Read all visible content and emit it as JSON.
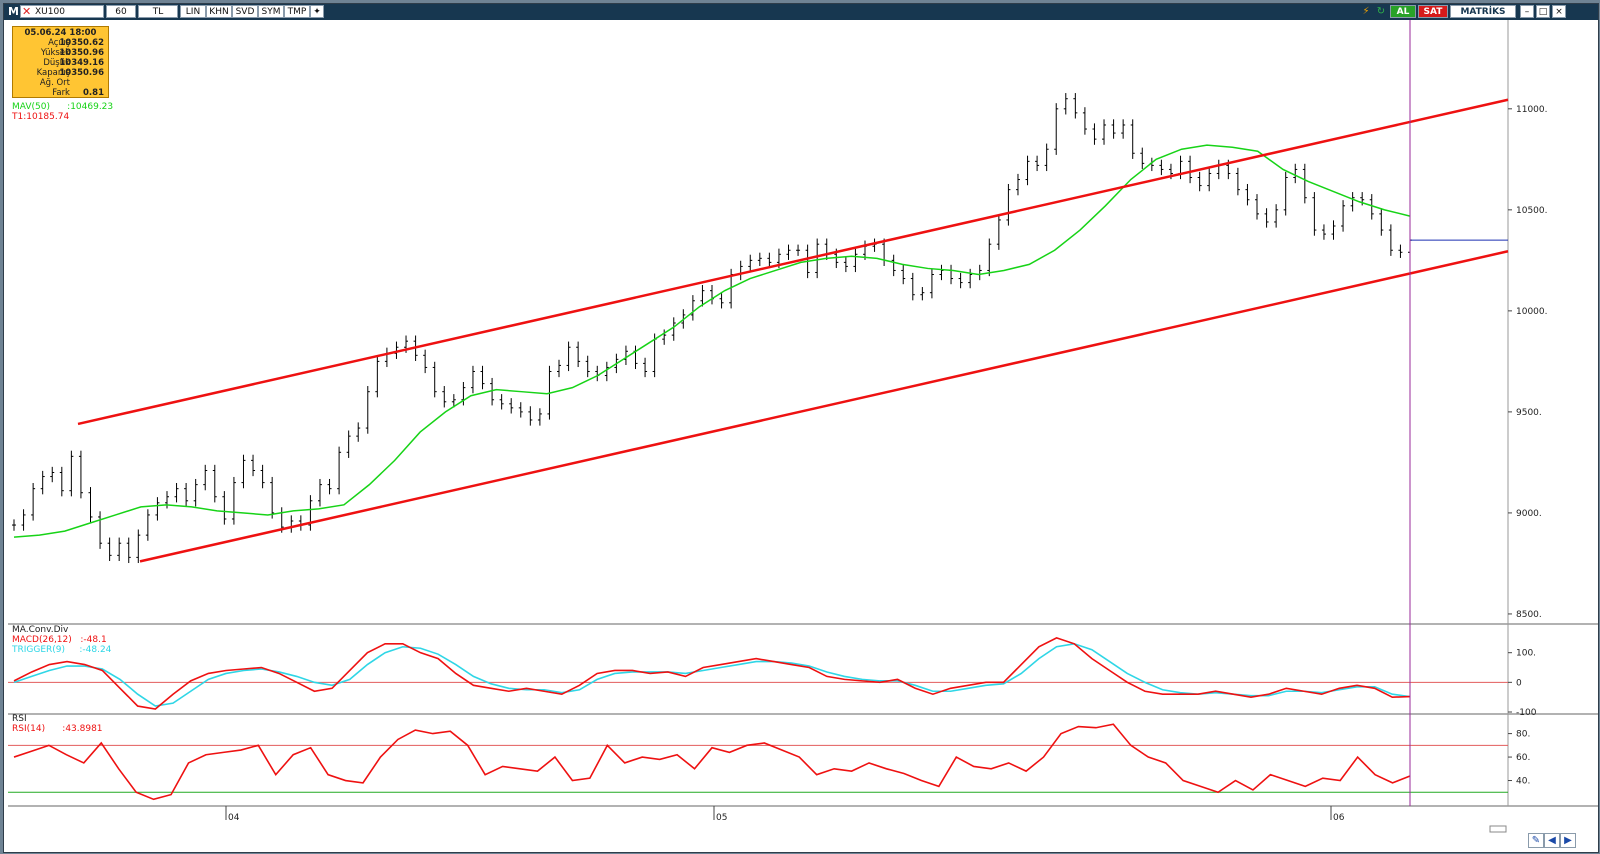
{
  "toolbar": {
    "menu_letter": "M",
    "symbol": "XU100",
    "period": "60",
    "currency": "TL",
    "buttons": [
      "LIN",
      "KHN",
      "SVD",
      "SYM",
      "TMP"
    ],
    "buy_label": "AL",
    "sell_label": "SAT",
    "brand": "MATRİKS"
  },
  "infobox": {
    "date": "05.06.24 18:00",
    "rows": [
      {
        "label": "Açılış",
        "value": "10350.62"
      },
      {
        "label": "Yüksek",
        "value": "10350.96"
      },
      {
        "label": "Düşük",
        "value": "10349.16"
      },
      {
        "label": "Kapanış",
        "value": "10350.96"
      },
      {
        "label": "Ağ. Ort",
        "value": ""
      },
      {
        "label": "Fark",
        "value": "0.81"
      }
    ]
  },
  "legends": {
    "mav": "MAV(50)",
    "mav_value": ":10469.23",
    "trend": "T1:10185.74",
    "macd_title": "MA.Conv.Div",
    "macd": "MACD(26,12)",
    "macd_value": ":-48.1",
    "trigger": "TRIGGER(9)",
    "trigger_value": ":-48.24",
    "rsi_title": "RSI",
    "rsi": "RSI(14)",
    "rsi_value": ":43.8981"
  },
  "colors": {
    "price": "#000000",
    "mav": "#17d317",
    "channel": "#ee1111",
    "macd": "#ee1111",
    "trigger": "#2fd6e6",
    "rsi": "#ee1111",
    "cursor": "#9a2a9a",
    "last_price_line": "#1a2fb0",
    "rsi_oversold": "#22aa22"
  },
  "chart_data": [
    {
      "type": "line",
      "panel": "price",
      "symbol": "XU100",
      "x_tick_labels": [
        "04",
        "05",
        "06"
      ],
      "y_ticks": [
        "8500.",
        "9000.",
        "9500.",
        "10000.",
        "10500.",
        "11000."
      ],
      "ylim": [
        8470,
        11400
      ],
      "series": [
        {
          "name": "XU100",
          "values": [
            8940,
            8990,
            9120,
            9180,
            9200,
            9110,
            9280,
            9100,
            8980,
            8850,
            8790,
            8850,
            8780,
            8890,
            8990,
            9050,
            9080,
            9120,
            9060,
            9140,
            9210,
            9080,
            8970,
            9150,
            9260,
            9210,
            9150,
            9000,
            8930,
            8960,
            8940,
            9060,
            9140,
            9120,
            9300,
            9380,
            9420,
            9600,
            9750,
            9790,
            9820,
            9850,
            9780,
            9720,
            9600,
            9550,
            9560,
            9620,
            9700,
            9640,
            9560,
            9540,
            9520,
            9500,
            9460,
            9490,
            9700,
            9730,
            9820,
            9750,
            9700,
            9680,
            9720,
            9760,
            9800,
            9740,
            9700,
            9860,
            9880,
            9940,
            9980,
            10050,
            10100,
            10060,
            10040,
            10180,
            10220,
            10250,
            10260,
            10240,
            10280,
            10300,
            10300,
            10190,
            10330,
            10280,
            10240,
            10220,
            10280,
            10320,
            10330,
            10250,
            10200,
            10160,
            10080,
            10090,
            10180,
            10200,
            10160,
            10140,
            10180,
            10200,
            10330,
            10450,
            10600,
            10650,
            10740,
            10720,
            10800,
            11000,
            11050,
            10980,
            10900,
            10850,
            10920,
            10880,
            10920,
            10780,
            10730,
            10720,
            10700,
            10680,
            10740,
            10660,
            10620,
            10680,
            10720,
            10680,
            10600,
            10550,
            10480,
            10440,
            10500,
            10660,
            10700,
            10560,
            10400,
            10380,
            10420,
            10520,
            10560,
            10550,
            10480,
            10400,
            10300,
            10290,
            10350
          ]
        },
        {
          "name": "MAV(50)",
          "values": [
            8880,
            8890,
            8910,
            8950,
            8990,
            9030,
            9040,
            9030,
            9010,
            9000,
            8990,
            9010,
            9020,
            9040,
            9140,
            9260,
            9400,
            9500,
            9580,
            9610,
            9600,
            9590,
            9620,
            9680,
            9760,
            9840,
            9920,
            10020,
            10100,
            10160,
            10200,
            10240,
            10260,
            10270,
            10260,
            10230,
            10210,
            10200,
            10180,
            10200,
            10230,
            10300,
            10400,
            10520,
            10650,
            10750,
            10800,
            10820,
            10810,
            10790,
            10700,
            10640,
            10590,
            10540,
            10500,
            10469
          ]
        },
        {
          "name": "T1",
          "values": [
            8760,
            10185
          ]
        }
      ]
    },
    {
      "type": "line",
      "panel": "macd",
      "y_ticks": [
        "100.",
        "0",
        "-100"
      ],
      "ylim": [
        -100,
        190
      ],
      "series": [
        {
          "name": "MACD(26,12)",
          "values": [
            5,
            35,
            60,
            70,
            60,
            40,
            -20,
            -80,
            -90,
            -40,
            5,
            30,
            40,
            45,
            50,
            30,
            0,
            -30,
            -20,
            40,
            100,
            130,
            130,
            100,
            80,
            30,
            -10,
            -20,
            -30,
            -20,
            -30,
            -40,
            -10,
            30,
            40,
            40,
            30,
            35,
            20,
            50,
            60,
            70,
            80,
            70,
            60,
            50,
            20,
            10,
            5,
            0,
            10,
            -20,
            -40,
            -20,
            -10,
            0,
            0,
            60,
            120,
            150,
            130,
            80,
            40,
            0,
            -30,
            -40,
            -40,
            -40,
            -30,
            -40,
            -50,
            -40,
            -20,
            -30,
            -40,
            -20,
            -10,
            -20,
            -50,
            -48
          ]
        },
        {
          "name": "TRIGGER(9)",
          "values": [
            0,
            20,
            40,
            55,
            55,
            45,
            10,
            -40,
            -80,
            -70,
            -30,
            10,
            30,
            40,
            45,
            35,
            20,
            0,
            -10,
            10,
            60,
            100,
            120,
            115,
            95,
            60,
            20,
            -5,
            -20,
            -25,
            -25,
            -35,
            -25,
            10,
            30,
            35,
            35,
            35,
            30,
            40,
            50,
            60,
            70,
            70,
            65,
            55,
            35,
            20,
            10,
            5,
            5,
            -10,
            -30,
            -30,
            -20,
            -10,
            -5,
            30,
            80,
            120,
            130,
            110,
            70,
            30,
            0,
            -25,
            -35,
            -40,
            -35,
            -40,
            -45,
            -45,
            -30,
            -30,
            -35,
            -25,
            -15,
            -15,
            -40,
            -48.24
          ]
        }
      ]
    },
    {
      "type": "line",
      "panel": "rsi",
      "y_ticks": [
        "80.",
        "60.",
        "40."
      ],
      "ylim": [
        20,
        95
      ],
      "series": [
        {
          "name": "RSI(14)",
          "values": [
            60,
            65,
            70,
            62,
            55,
            72,
            50,
            30,
            24,
            28,
            55,
            62,
            64,
            66,
            70,
            45,
            62,
            68,
            45,
            40,
            38,
            60,
            75,
            83,
            80,
            82,
            70,
            45,
            52,
            50,
            48,
            60,
            40,
            42,
            70,
            55,
            60,
            58,
            62,
            50,
            68,
            64,
            70,
            72,
            66,
            60,
            45,
            50,
            48,
            55,
            50,
            46,
            40,
            35,
            60,
            52,
            50,
            55,
            48,
            60,
            80,
            86,
            85,
            88,
            70,
            60,
            55,
            40,
            35,
            30,
            40,
            32,
            45,
            40,
            35,
            42,
            40,
            60,
            45,
            38,
            43.9
          ]
        }
      ]
    }
  ]
}
